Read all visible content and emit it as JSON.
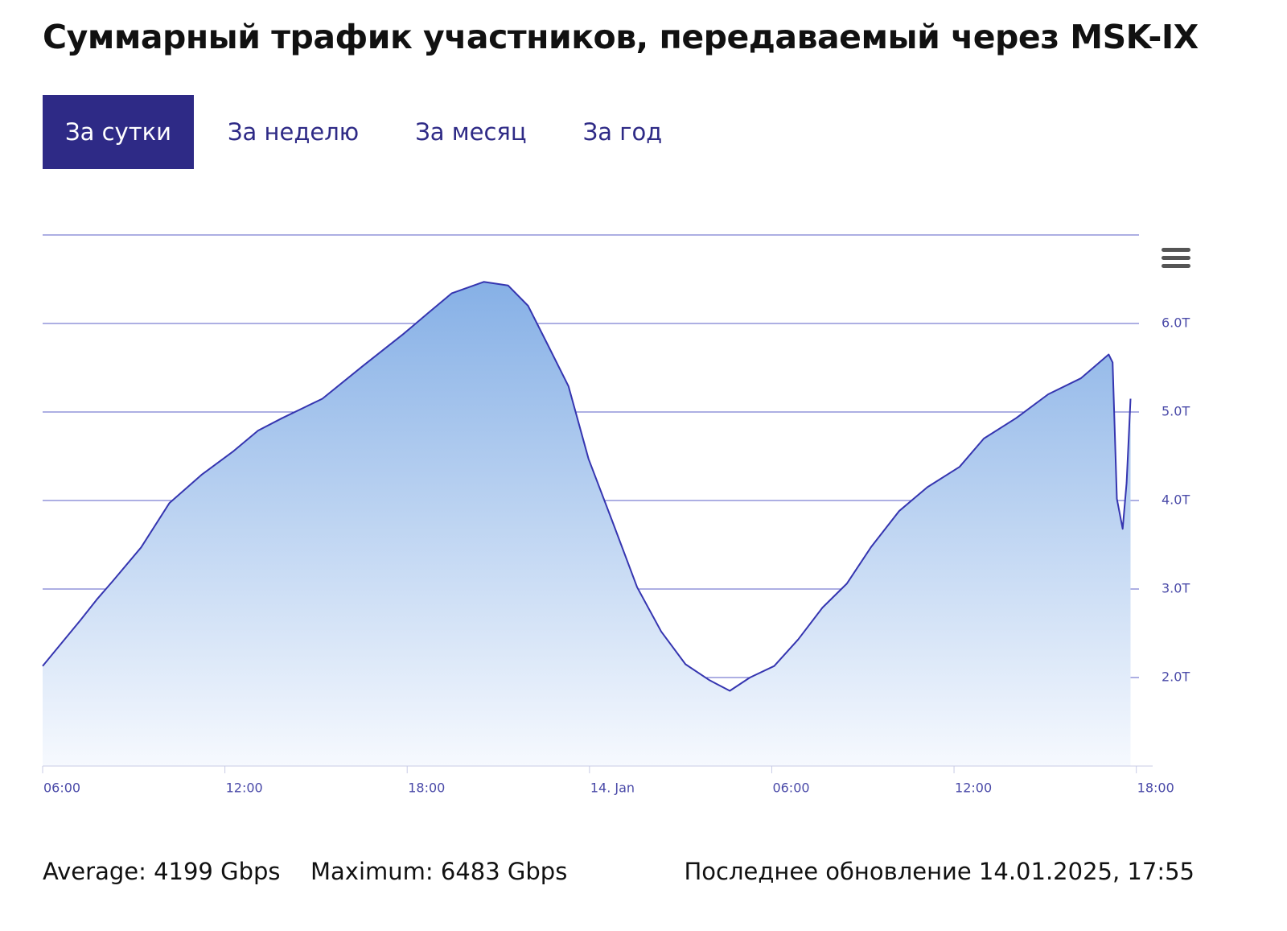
{
  "header": {
    "title": "Суммарный трафик участников, передаваемый через MSK-IX"
  },
  "tabs": [
    "За сутки",
    "За неделю",
    "За месяц",
    "За год"
  ],
  "chart_data": {
    "type": "area",
    "x": [
      6.0,
      7.25,
      7.78,
      8.31,
      9.24,
      10.17,
      11.23,
      12.29,
      13.09,
      13.88,
      15.21,
      16.54,
      17.87,
      18.66,
      19.46,
      20.52,
      21.32,
      21.98,
      22.64,
      23.31,
      23.97,
      24.77,
      25.57,
      26.36,
      27.16,
      27.95,
      28.62,
      29.28,
      30.08,
      30.87,
      31.67,
      32.47,
      33.26,
      34.19,
      35.12,
      36.18,
      36.98,
      38.04,
      39.1,
      40.17,
      41.09,
      41.22,
      41.36,
      41.55,
      41.68,
      41.81
    ],
    "values": [
      2.13,
      2.65,
      2.88,
      3.09,
      3.47,
      3.97,
      4.29,
      4.56,
      4.79,
      4.93,
      5.15,
      5.52,
      5.88,
      6.11,
      6.34,
      6.47,
      6.43,
      6.2,
      5.75,
      5.29,
      4.47,
      3.75,
      3.02,
      2.52,
      2.15,
      1.97,
      1.85,
      2.0,
      2.13,
      2.43,
      2.79,
      3.06,
      3.47,
      3.88,
      4.15,
      4.38,
      4.7,
      4.93,
      5.2,
      5.38,
      5.65,
      5.56,
      4.02,
      3.68,
      4.2,
      5.15
    ],
    "color": "#3535b0",
    "xlim": [
      6,
      42.3
    ],
    "xticks": [
      {
        "value": 6,
        "label": "06:00"
      },
      {
        "value": 12,
        "label": "12:00"
      },
      {
        "value": 18,
        "label": "18:00"
      },
      {
        "value": 24,
        "label": "14. Jan"
      },
      {
        "value": 30,
        "label": "06:00"
      },
      {
        "value": 36,
        "label": "12:00"
      },
      {
        "value": 42,
        "label": "18:00"
      }
    ],
    "ylim": [
      1,
      7
    ],
    "yticks": [
      {
        "value": 2,
        "label": "2.0T"
      },
      {
        "value": 3,
        "label": "3.0T"
      },
      {
        "value": 4,
        "label": "4.0T"
      },
      {
        "value": 5,
        "label": "5.0T"
      },
      {
        "value": 6,
        "label": "6.0T"
      }
    ],
    "grid": true
  },
  "footer": {
    "average": "Average: 4199 Gbps",
    "maximum": "Maximum: 6483 Gbps",
    "updated": "Последнее обновление 14.01.2025, 17:55"
  }
}
